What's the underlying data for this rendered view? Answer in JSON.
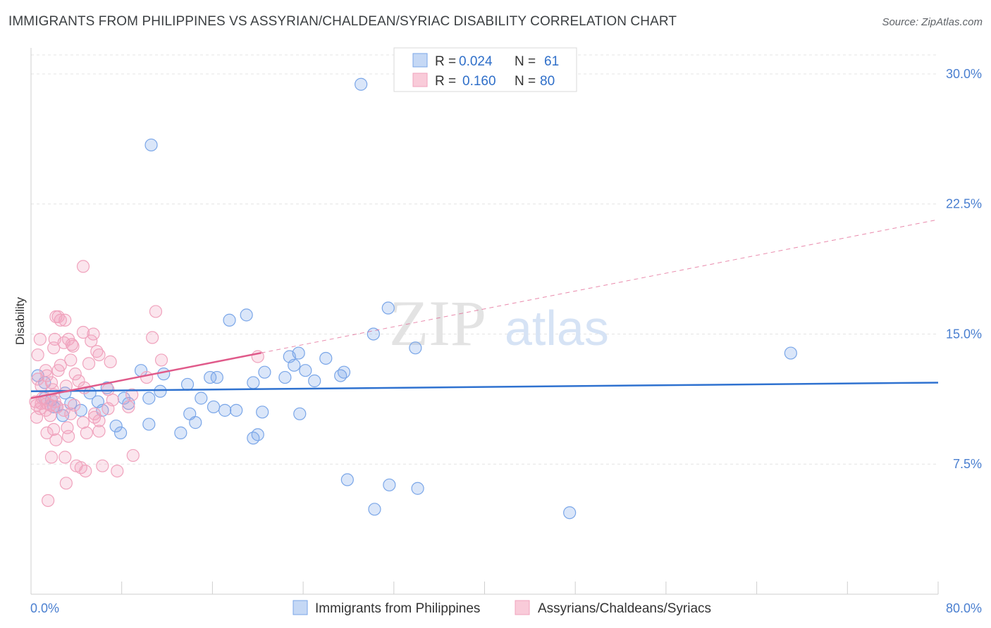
{
  "title": "IMMIGRANTS FROM PHILIPPINES VS ASSYRIAN/CHALDEAN/SYRIAC DISABILITY CORRELATION CHART",
  "source": "Source: ZipAtlas.com",
  "watermark": {
    "zip": "ZIP",
    "atlas": "atlas"
  },
  "chart_data": {
    "type": "scatter",
    "xlabel": "",
    "ylabel": "Disability",
    "xlim": [
      0,
      80
    ],
    "ylim": [
      0,
      31.5
    ],
    "x_tick_labels": [
      "0.0%",
      "80.0%"
    ],
    "y_ticks": [
      7.5,
      15.0,
      22.5,
      30.0
    ],
    "y_tick_labels": [
      "7.5%",
      "15.0%",
      "22.5%",
      "30.0%"
    ],
    "legend": {
      "position": "top-center",
      "rows": [
        {
          "r_label": "R =",
          "r_value": "0.024",
          "n_label": "N =",
          "n_value": "61"
        },
        {
          "r_label": "R =",
          "r_value": "0.160",
          "n_label": "N = ",
          "n_value": "80"
        }
      ]
    },
    "series": [
      {
        "name": "Immigrants from Philippines",
        "color": "#7aa6e8",
        "trend_color": "#2f72d0",
        "trend": {
          "x0": 0,
          "y0": 11.7,
          "x1": 80,
          "y1": 12.2,
          "solid_until": 80
        },
        "points": [
          [
            29.1,
            29.4
          ],
          [
            10.6,
            25.9
          ],
          [
            15.0,
            11.3
          ],
          [
            31.5,
            16.5
          ],
          [
            17.5,
            15.8
          ],
          [
            19.0,
            16.1
          ],
          [
            30.2,
            15.0
          ],
          [
            33.9,
            14.2
          ],
          [
            67.0,
            13.9
          ],
          [
            23.6,
            13.9
          ],
          [
            22.8,
            13.7
          ],
          [
            26.0,
            13.6
          ],
          [
            23.2,
            13.2
          ],
          [
            24.2,
            12.9
          ],
          [
            22.4,
            12.5
          ],
          [
            25.0,
            12.3
          ],
          [
            27.3,
            12.6
          ],
          [
            27.6,
            12.8
          ],
          [
            20.6,
            12.8
          ],
          [
            9.7,
            12.9
          ],
          [
            11.7,
            12.7
          ],
          [
            13.8,
            12.1
          ],
          [
            16.4,
            12.5
          ],
          [
            19.6,
            12.2
          ],
          [
            15.8,
            12.5
          ],
          [
            11.4,
            11.7
          ],
          [
            6.7,
            11.9
          ],
          [
            5.2,
            11.6
          ],
          [
            3.0,
            11.6
          ],
          [
            1.2,
            11.3
          ],
          [
            1.8,
            11.2
          ],
          [
            5.9,
            11.1
          ],
          [
            3.5,
            11.0
          ],
          [
            8.2,
            11.3
          ],
          [
            8.6,
            11.0
          ],
          [
            10.4,
            11.3
          ],
          [
            2.3,
            10.8
          ],
          [
            2.0,
            10.8
          ],
          [
            4.4,
            10.6
          ],
          [
            6.3,
            10.6
          ],
          [
            16.1,
            10.8
          ],
          [
            14.0,
            10.4
          ],
          [
            20.4,
            10.5
          ],
          [
            23.7,
            10.4
          ],
          [
            17.1,
            10.6
          ],
          [
            18.1,
            10.6
          ],
          [
            14.5,
            9.9
          ],
          [
            10.4,
            9.8
          ],
          [
            7.5,
            9.7
          ],
          [
            7.9,
            9.3
          ],
          [
            13.2,
            9.3
          ],
          [
            20.0,
            9.2
          ],
          [
            19.6,
            9.0
          ],
          [
            27.9,
            6.6
          ],
          [
            31.6,
            6.3
          ],
          [
            34.1,
            6.1
          ],
          [
            30.3,
            4.9
          ],
          [
            47.5,
            4.7
          ],
          [
            1.2,
            12.2
          ],
          [
            0.6,
            12.6
          ],
          [
            2.8,
            10.3
          ]
        ]
      },
      {
        "name": "Assyrians/Chaldeans/Syriacs",
        "color": "#f0a3bd",
        "trend_color": "#e05a8a",
        "trend": {
          "x0": 0,
          "y0": 11.3,
          "x1": 80,
          "y1": 21.6,
          "solid_until": 20.3
        },
        "points": [
          [
            4.6,
            18.9
          ],
          [
            11.0,
            16.3
          ],
          [
            2.4,
            16.0
          ],
          [
            3.0,
            15.8
          ],
          [
            2.6,
            15.8
          ],
          [
            2.2,
            16.0
          ],
          [
            4.6,
            15.1
          ],
          [
            5.5,
            15.0
          ],
          [
            10.7,
            14.8
          ],
          [
            2.1,
            14.7
          ],
          [
            3.3,
            14.7
          ],
          [
            5.3,
            14.6
          ],
          [
            0.8,
            14.7
          ],
          [
            3.7,
            14.3
          ],
          [
            2.9,
            14.5
          ],
          [
            5.8,
            14.0
          ],
          [
            3.6,
            14.4
          ],
          [
            2.0,
            14.2
          ],
          [
            6.0,
            13.8
          ],
          [
            0.6,
            13.8
          ],
          [
            3.5,
            13.5
          ],
          [
            11.5,
            13.5
          ],
          [
            20.0,
            13.7
          ],
          [
            5.1,
            13.3
          ],
          [
            1.3,
            12.9
          ],
          [
            2.4,
            12.9
          ],
          [
            0.6,
            12.4
          ],
          [
            1.8,
            12.2
          ],
          [
            4.2,
            12.3
          ],
          [
            3.1,
            12.0
          ],
          [
            4.7,
            11.9
          ],
          [
            1.9,
            11.8
          ],
          [
            6.8,
            11.8
          ],
          [
            10.2,
            12.5
          ],
          [
            8.9,
            11.5
          ],
          [
            1.0,
            11.3
          ],
          [
            0.4,
            11.1
          ],
          [
            0.9,
            11.0
          ],
          [
            1.4,
            11.0
          ],
          [
            1.7,
            10.9
          ],
          [
            2.1,
            11.1
          ],
          [
            2.3,
            10.8
          ],
          [
            0.5,
            10.9
          ],
          [
            0.8,
            10.7
          ],
          [
            1.3,
            10.6
          ],
          [
            3.8,
            10.9
          ],
          [
            2.9,
            10.6
          ],
          [
            6.8,
            10.7
          ],
          [
            3.5,
            10.4
          ],
          [
            5.6,
            10.4
          ],
          [
            1.7,
            10.3
          ],
          [
            0.5,
            10.2
          ],
          [
            5.6,
            10.2
          ],
          [
            6.0,
            10.0
          ],
          [
            4.6,
            9.9
          ],
          [
            2.0,
            9.5
          ],
          [
            3.2,
            9.6
          ],
          [
            6.0,
            9.4
          ],
          [
            1.4,
            9.3
          ],
          [
            4.9,
            9.3
          ],
          [
            2.2,
            8.9
          ],
          [
            3.3,
            9.1
          ],
          [
            1.8,
            7.9
          ],
          [
            3.0,
            7.9
          ],
          [
            9.0,
            8.0
          ],
          [
            4.0,
            7.4
          ],
          [
            4.4,
            7.3
          ],
          [
            6.3,
            7.4
          ],
          [
            4.8,
            7.1
          ],
          [
            3.1,
            6.4
          ],
          [
            1.5,
            5.4
          ],
          [
            7.6,
            7.1
          ],
          [
            7.2,
            11.2
          ],
          [
            8.6,
            10.8
          ],
          [
            1.4,
            12.6
          ],
          [
            2.6,
            13.2
          ],
          [
            3.9,
            12.7
          ],
          [
            2.0,
            11.5
          ],
          [
            0.9,
            12.0
          ],
          [
            7.0,
            13.4
          ]
        ]
      }
    ]
  }
}
